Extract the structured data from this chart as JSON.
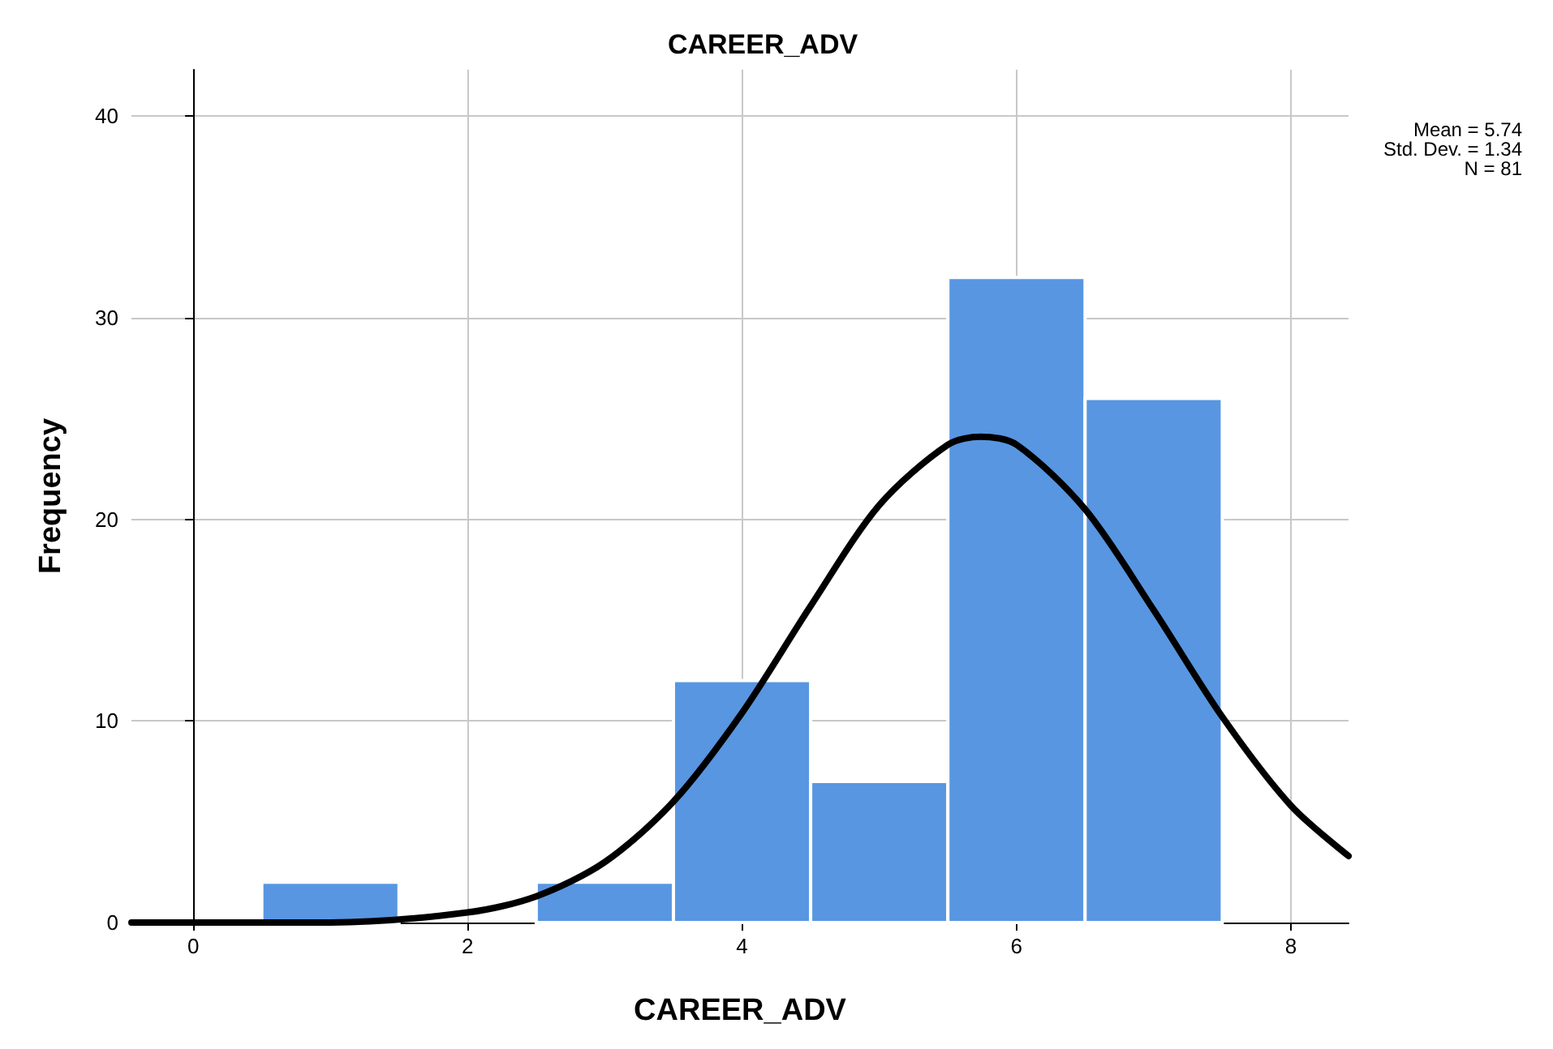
{
  "chart_data": {
    "type": "histogram",
    "title": "CAREER_ADV",
    "xlabel": "CAREER_ADV",
    "ylabel": "Frequency",
    "bins": [
      0.5,
      1.5,
      2.5,
      3.5,
      4.5,
      5.5,
      6.5,
      7.5
    ],
    "values": [
      2,
      0,
      2,
      12,
      7,
      32,
      26
    ],
    "color": "#5896e2",
    "series": [
      {
        "type": "line",
        "color": "#000000",
        "x": [
          -0.45,
          0,
          1,
          2,
          2.5,
          3,
          3.5,
          4,
          4.5,
          5,
          5.5,
          5.74,
          6,
          6.5,
          7,
          7.5,
          8,
          8.42
        ],
        "values": [
          0,
          0,
          0,
          0.5,
          1.3,
          3,
          6,
          10.4,
          15.7,
          20.7,
          23.7,
          24.1,
          23.7,
          20.5,
          15.5,
          10.2,
          5.8,
          3.3
        ]
      }
    ],
    "marker": "none",
    "line_style": "solid",
    "xlim": [
      -0.45,
      8.42
    ],
    "xticks": [
      0,
      2,
      4,
      6,
      8
    ],
    "ylim": [
      0,
      42.3
    ],
    "yticks": [
      0,
      10,
      20,
      30,
      40
    ],
    "grid": true,
    "annotations": [
      "Mean = 5.74",
      "Std. Dev. = 1.34",
      "N = 81"
    ]
  }
}
